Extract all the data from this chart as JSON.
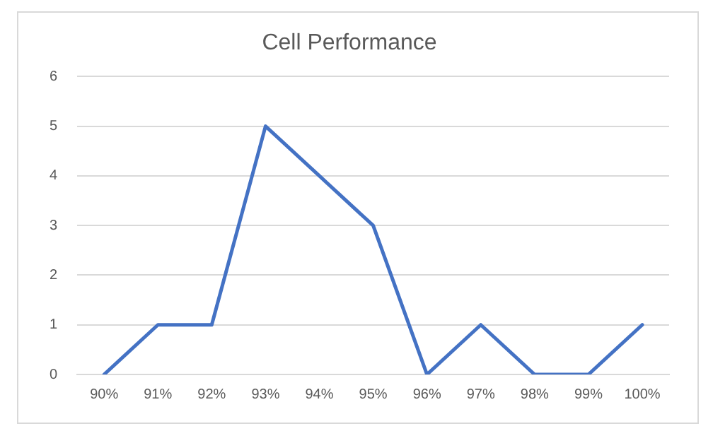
{
  "chart_data": {
    "type": "line",
    "title": "Cell Performance",
    "categories": [
      "90%",
      "91%",
      "92%",
      "93%",
      "94%",
      "95%",
      "96%",
      "97%",
      "98%",
      "99%",
      "100%"
    ],
    "series": [
      {
        "color": "#4472c4",
        "values": [
          0,
          1,
          1,
          5,
          4,
          3,
          0,
          1,
          0,
          0,
          1
        ]
      }
    ],
    "ylim": [
      0,
      6
    ],
    "yticks": [
      0,
      1,
      2,
      3,
      4,
      5,
      6
    ],
    "grid": "y",
    "legend": false,
    "marker": "none",
    "line_style": "solid"
  }
}
